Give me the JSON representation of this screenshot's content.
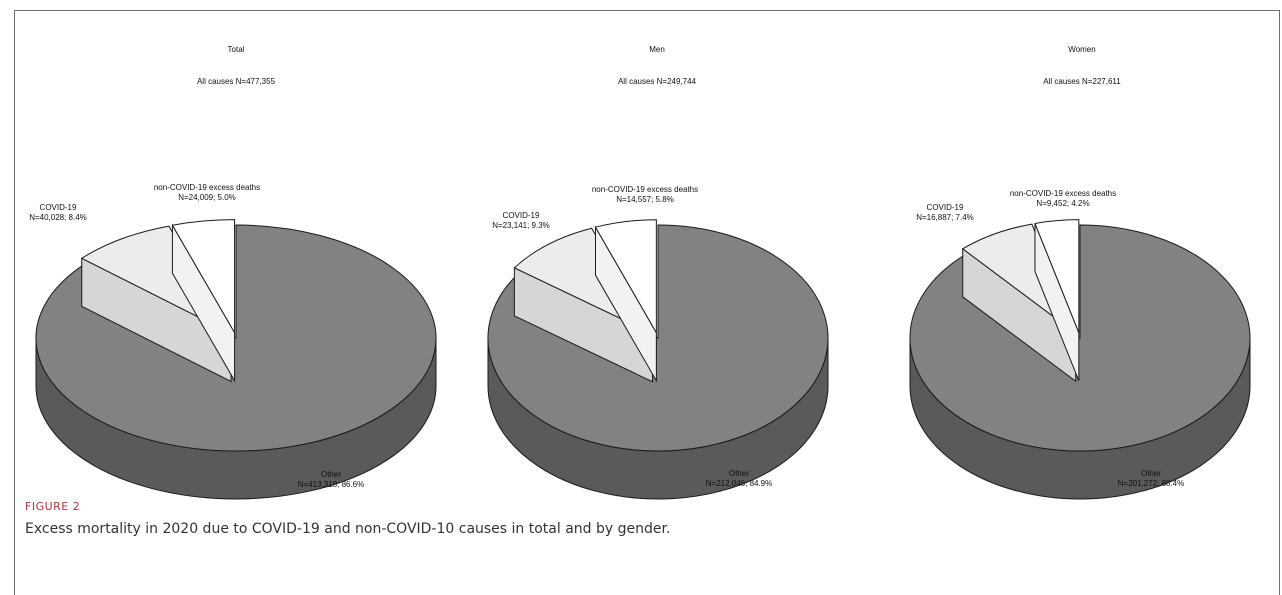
{
  "figure": {
    "label": "FIGURE 2",
    "caption": "Excess mortality in 2020 due to COVID-19 and non-COVID-10 causes in total and by gender."
  },
  "colors": {
    "other_top": "#828282",
    "other_side": "#5a5a5a",
    "covid_top": "#ececec",
    "covid_side": "#d6d6d6",
    "noncovid_top": "#ffffff",
    "noncovid_side": "#f2f2f2",
    "edge": "#1a1a1a"
  },
  "chart_data": [
    {
      "type": "pie",
      "title": "Total",
      "subtitle": "All causes N=477,355",
      "slices": [
        {
          "name": "Other",
          "value": 413318,
          "pct": 86.6,
          "label_n": "N=413,318;  86.6%"
        },
        {
          "name": "COVID-19",
          "value": 40028,
          "pct": 8.4,
          "label_n": "N=40,028;  8.4%",
          "exploded": true
        },
        {
          "name": "non-COVID-19 excess deaths",
          "value": 24009,
          "pct": 5.0,
          "label_n": "N=24,009;  5.0%",
          "exploded": true
        }
      ]
    },
    {
      "type": "pie",
      "title": "Men",
      "subtitle": "All causes N=249,744",
      "slices": [
        {
          "name": "Other",
          "value": 212046,
          "pct": 84.9,
          "label_n": "N=212,046;  84.9%"
        },
        {
          "name": "COVID-19",
          "value": 23141,
          "pct": 9.3,
          "label_n": "N=23,141;  9.3%",
          "exploded": true
        },
        {
          "name": "non-COVID-19 excess deaths",
          "value": 14557,
          "pct": 5.8,
          "label_n": "N=14,557;  5.8%",
          "exploded": true
        }
      ]
    },
    {
      "type": "pie",
      "title": "Women",
      "subtitle": "All causes N=227,611",
      "slices": [
        {
          "name": "Other",
          "value": 201272,
          "pct": 88.4,
          "label_n": "N=201,272;  88.4%"
        },
        {
          "name": "COVID-19",
          "value": 16887,
          "pct": 7.4,
          "label_n": "N=16,887;  7.4%",
          "exploded": true
        },
        {
          "name": "non-COVID-19 excess deaths",
          "value": 9452,
          "pct": 4.2,
          "label_n": "N=9,452;  4.2%",
          "exploded": true
        }
      ]
    }
  ]
}
